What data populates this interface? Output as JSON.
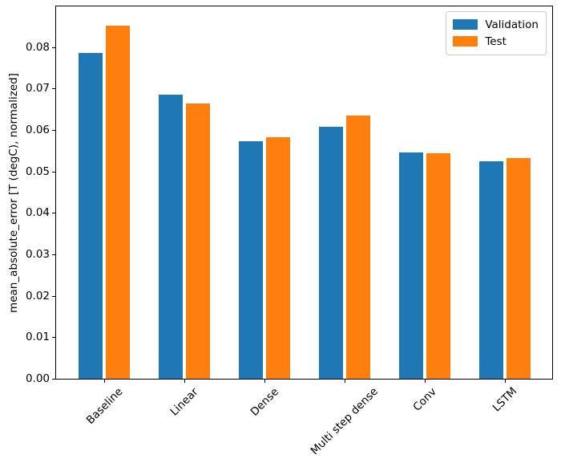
{
  "figure": {
    "background": "#ffffff",
    "frame_color": "#000000"
  },
  "chart_data": {
    "type": "bar",
    "title": "",
    "xlabel": "",
    "ylabel": "mean_absolute_error [T (degC), normalized]",
    "categories": [
      "Baseline",
      "Linear",
      "Dense",
      "Multi step dense",
      "Conv",
      "LSTM"
    ],
    "series": [
      {
        "name": "Validation",
        "color": "#1f77b4",
        "values": [
          0.0785,
          0.0686,
          0.0573,
          0.0607,
          0.0545,
          0.0524
        ]
      },
      {
        "name": "Test",
        "color": "#ff7f0e",
        "values": [
          0.0852,
          0.0664,
          0.0582,
          0.0634,
          0.0543,
          0.0532
        ]
      }
    ],
    "ylim": [
      0,
      0.0898
    ],
    "yticks": [
      0,
      0.01,
      0.02,
      0.03,
      0.04,
      0.05,
      0.06,
      0.07,
      0.08
    ],
    "bar_width": 0.3,
    "bar_offsets": [
      -0.17,
      0.17
    ],
    "xtick_rotation": 45,
    "grid": false,
    "legend_position": "upper right"
  }
}
